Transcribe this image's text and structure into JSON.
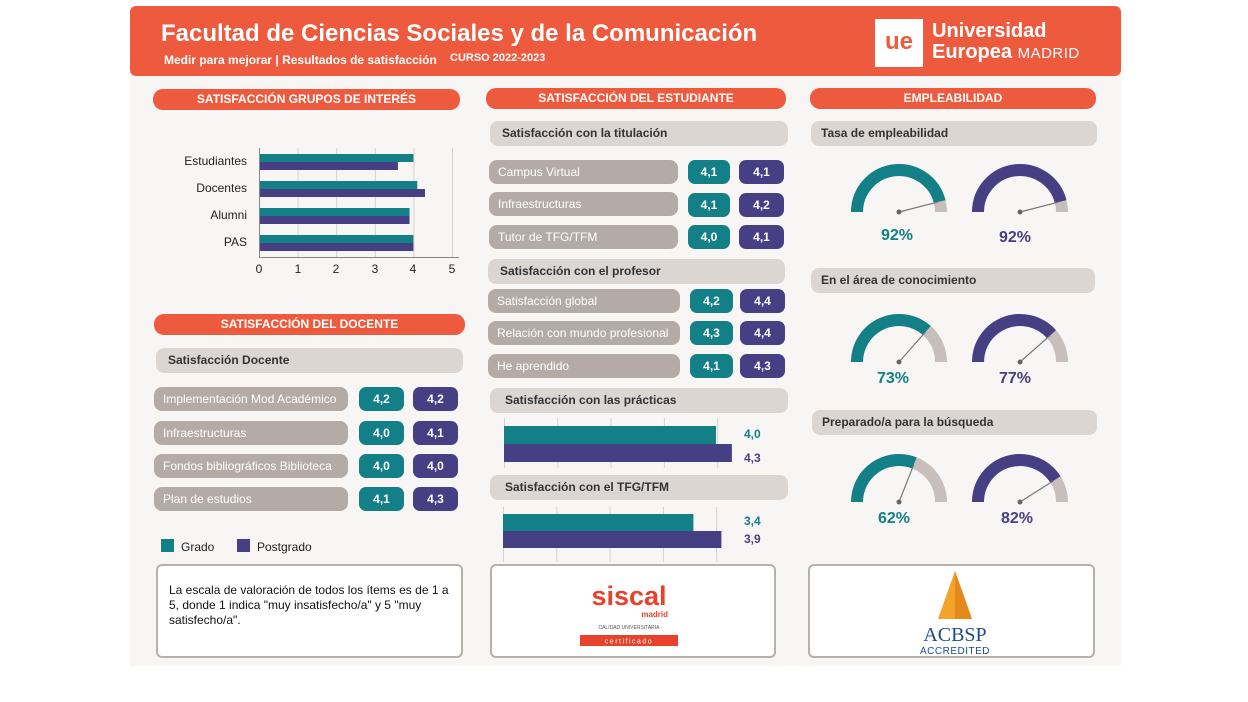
{
  "header": {
    "title": "Facultad de Ciencias Sociales y de la Comunicación",
    "subtitle": "Medir para mejorar | Resultados de satisfacción",
    "course": "CURSO 2022-2023",
    "logo_mark": "ue",
    "logo_line1": "Universidad",
    "logo_line2a": "Europea",
    "logo_line2b": "MADRID"
  },
  "colors": {
    "brand": "#ee5a3e",
    "grado": "#137f86",
    "postgrado": "#463f84",
    "neutral": "#b4aba6"
  },
  "grupos": {
    "heading": "SATISFACCIÓN GRUPOS DE INTERÉS",
    "chart_data": {
      "type": "bar",
      "orientation": "horizontal",
      "categories": [
        "Estudiantes",
        "Docentes",
        "Alumni",
        "PAS"
      ],
      "series": [
        {
          "name": "Grado",
          "values": [
            4.0,
            4.1,
            3.9,
            4.0
          ]
        },
        {
          "name": "Postgrado",
          "values": [
            3.6,
            4.3,
            3.9,
            4.0
          ]
        }
      ],
      "xticks": [
        "0",
        "1",
        "2",
        "3",
        "4",
        "5"
      ],
      "xlim": [
        0,
        5
      ],
      "grid": true
    }
  },
  "docente": {
    "heading": "SATISFACCIÓN DEL DOCENTE",
    "subheading": "Satisfacción Docente",
    "items": [
      {
        "label": "Implementación Mod Académico",
        "grado": "4,2",
        "postgrado": "4,2"
      },
      {
        "label": "Infraestructuras",
        "grado": "4,0",
        "postgrado": "4,1"
      },
      {
        "label": "Fondos bibliográficos Biblioteca",
        "grado": "4,0",
        "postgrado": "4,0"
      },
      {
        "label": "Plan de estudios",
        "grado": "4,1",
        "postgrado": "4,3"
      }
    ]
  },
  "legend": {
    "grado": "Grado",
    "postgrado": "Postgrado"
  },
  "note": "La escala de valoración de todos los ítems es de 1 a 5, donde 1 indica \"muy insatisfecho/a\" y 5 \"muy satisfecho/a\".",
  "estudiante": {
    "heading": "SATISFACCIÓN DEL ESTUDIANTE",
    "titulacion": {
      "heading": "Satisfacción con la titulación",
      "items": [
        {
          "label": "Campus Virtual",
          "grado": "4,1",
          "postgrado": "4,1"
        },
        {
          "label": "Infraestructuras",
          "grado": "4,1",
          "postgrado": "4,2"
        },
        {
          "label": "Tutor de TFG/TFM",
          "grado": "4,0",
          "postgrado": "4,1"
        }
      ]
    },
    "profesor": {
      "heading": "Satisfacción con el profesor",
      "items": [
        {
          "label": "Satisfacción global",
          "grado": "4,2",
          "postgrado": "4,4"
        },
        {
          "label": "Relación con mundo profesional",
          "grado": "4,3",
          "postgrado": "4,4"
        },
        {
          "label": "He aprendido",
          "grado": "4,1",
          "postgrado": "4,3"
        }
      ]
    },
    "practicas": {
      "heading": "Satisfacción con las prácticas",
      "chart_data": {
        "type": "bar",
        "orientation": "horizontal",
        "series": [
          {
            "name": "Grado",
            "values": [
              4.0
            ],
            "label": "4,0"
          },
          {
            "name": "Postgrado",
            "values": [
              4.3
            ],
            "label": "4,3"
          }
        ],
        "xlim": [
          0,
          5
        ]
      }
    },
    "tfg": {
      "heading": "Satisfacción con el TFG/TFM",
      "chart_data": {
        "type": "bar",
        "orientation": "horizontal",
        "series": [
          {
            "name": "Grado",
            "values": [
              3.4
            ],
            "label": "3,4"
          },
          {
            "name": "Postgrado",
            "values": [
              3.9
            ],
            "label": "3,9"
          }
        ],
        "xlim": [
          0,
          5
        ]
      }
    }
  },
  "siscal": {
    "name": "siscal",
    "sub": "madrid",
    "tag": "CALIDAD UNIVERSITARIA",
    "cert": "certificado"
  },
  "empleabilidad": {
    "heading": "EMPLEABILIDAD",
    "sections": [
      {
        "heading": "Tasa de empleabilidad",
        "grado_pct": 92,
        "postgrado_pct": 92,
        "grado_label": "92%",
        "postgrado_label": "92%"
      },
      {
        "heading": "En el área de conocimiento",
        "grado_pct": 73,
        "postgrado_pct": 77,
        "grado_label": "73%",
        "postgrado_label": "77%"
      },
      {
        "heading": "Preparado/a para la búsqueda",
        "grado_pct": 62,
        "postgrado_pct": 82,
        "grado_label": "62%",
        "postgrado_label": "82%"
      }
    ]
  },
  "acbsp": {
    "name": "ACBSP",
    "tag": "ACCREDITED"
  }
}
